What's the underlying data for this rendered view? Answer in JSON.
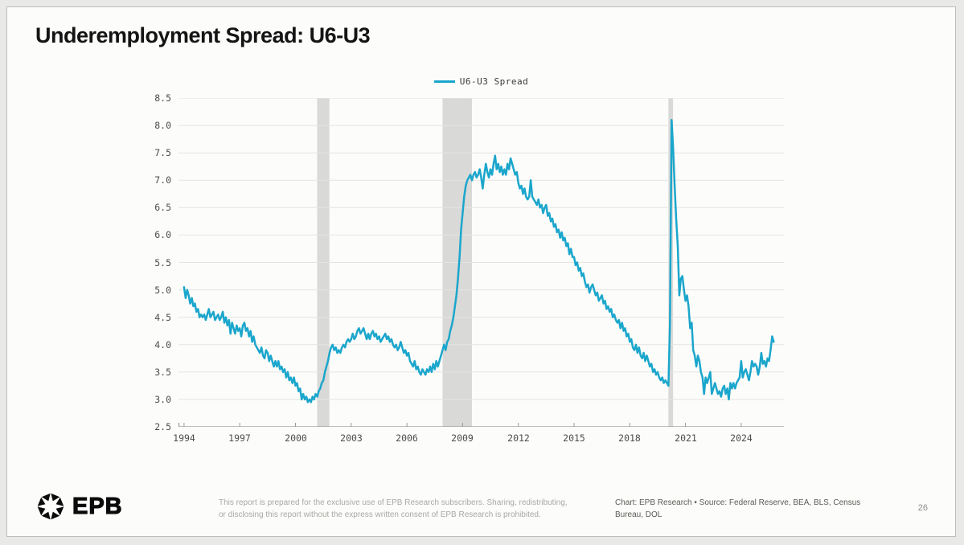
{
  "page": {
    "title": "Underemployment Spread: U6-U3",
    "page_number": "26"
  },
  "brand": {
    "name": "EPB",
    "logo_icon": "epb-sunburst-logo"
  },
  "footer": {
    "disclaimer_line1": "This report is prepared for the exclusive use of EPB Research subscribers. Sharing, redistributing,",
    "disclaimer_line2": "or disclosing this report without the express written consent of EPB Research is prohibited.",
    "source_line1": "Chart: EPB Research  •  Source: Federal Reserve, BEA, BLS, Census",
    "source_line2": "Bureau, DOL"
  },
  "colors": {
    "background": "#e9e9e7",
    "card": "#fcfcfa",
    "card_border": "#bdbdba",
    "title": "#141414",
    "grid": "#e4e4e1",
    "axis": "#9a9a97",
    "tick_label": "#4c4c4c",
    "recession_band": "#d9d9d7",
    "line": "#1ba6cc",
    "legend_text": "#3a3a3a",
    "disclaimer": "#a8a8a5",
    "source": "#5c5a56",
    "page_number": "#8b8b89"
  },
  "chart_data": {
    "type": "line",
    "title": "Underemployment Spread: U6-U3",
    "legend": [
      "U6-U3 Spread"
    ],
    "legend_position": "top-center",
    "grid": true,
    "line_color": "#1ba6cc",
    "x_start": 1994.0,
    "x_step_months": 1,
    "xlim": [
      1993.7,
      2026.3
    ],
    "ylim": [
      2.5,
      8.5
    ],
    "x_ticks": [
      1994,
      1997,
      2000,
      2003,
      2006,
      2009,
      2012,
      2015,
      2018,
      2021,
      2024
    ],
    "y_ticks": [
      2.5,
      3.0,
      3.5,
      4.0,
      4.5,
      5.0,
      5.5,
      6.0,
      6.5,
      7.0,
      7.5,
      8.0,
      8.5
    ],
    "recession_bands": [
      [
        2001.17,
        2001.83
      ],
      [
        2007.92,
        2009.5
      ],
      [
        2020.08,
        2020.33
      ]
    ],
    "values": [
      5.05,
      4.85,
      5.0,
      4.9,
      4.75,
      4.85,
      4.7,
      4.75,
      4.6,
      4.65,
      4.5,
      4.55,
      4.5,
      4.55,
      4.45,
      4.55,
      4.65,
      4.5,
      4.55,
      4.6,
      4.45,
      4.5,
      4.55,
      4.45,
      4.5,
      4.6,
      4.4,
      4.5,
      4.35,
      4.45,
      4.2,
      4.4,
      4.3,
      4.2,
      4.35,
      4.25,
      4.3,
      4.15,
      4.35,
      4.4,
      4.25,
      4.3,
      4.15,
      4.25,
      4.05,
      4.15,
      4.0,
      3.95,
      3.9,
      3.85,
      3.95,
      3.8,
      3.75,
      3.9,
      3.85,
      3.7,
      3.8,
      3.7,
      3.6,
      3.7,
      3.6,
      3.7,
      3.55,
      3.6,
      3.5,
      3.55,
      3.4,
      3.5,
      3.35,
      3.4,
      3.3,
      3.4,
      3.25,
      3.3,
      3.15,
      3.2,
      3.0,
      3.1,
      3.0,
      3.05,
      2.95,
      3.0,
      2.95,
      3.05,
      3.0,
      3.1,
      3.05,
      3.15,
      3.2,
      3.3,
      3.35,
      3.5,
      3.6,
      3.7,
      3.85,
      3.95,
      4.0,
      3.9,
      3.95,
      3.85,
      3.9,
      3.85,
      3.95,
      4.0,
      3.95,
      4.05,
      4.1,
      4.05,
      4.1,
      4.2,
      4.1,
      4.15,
      4.25,
      4.3,
      4.2,
      4.25,
      4.3,
      4.2,
      4.1,
      4.2,
      4.1,
      4.2,
      4.25,
      4.15,
      4.2,
      4.1,
      4.15,
      4.05,
      4.1,
      4.15,
      4.2,
      4.1,
      4.15,
      4.05,
      4.1,
      4.0,
      3.95,
      4.0,
      3.9,
      3.95,
      4.05,
      3.95,
      3.85,
      3.9,
      3.8,
      3.85,
      3.7,
      3.65,
      3.6,
      3.7,
      3.55,
      3.6,
      3.5,
      3.45,
      3.55,
      3.5,
      3.45,
      3.55,
      3.5,
      3.6,
      3.5,
      3.65,
      3.55,
      3.7,
      3.6,
      3.7,
      3.8,
      3.9,
      4.0,
      3.9,
      4.05,
      4.1,
      4.25,
      4.35,
      4.5,
      4.7,
      4.9,
      5.2,
      5.6,
      6.1,
      6.4,
      6.7,
      6.9,
      7.0,
      7.05,
      7.1,
      7.0,
      7.1,
      7.15,
      7.05,
      7.1,
      7.2,
      7.05,
      6.85,
      7.1,
      7.3,
      7.15,
      7.05,
      7.2,
      7.1,
      7.3,
      7.45,
      7.2,
      7.3,
      7.15,
      7.25,
      7.1,
      7.2,
      7.1,
      7.3,
      7.2,
      7.4,
      7.3,
      7.2,
      7.1,
      7.15,
      6.95,
      6.85,
      6.9,
      6.75,
      6.85,
      6.7,
      6.65,
      6.7,
      7.0,
      6.7,
      6.65,
      6.6,
      6.55,
      6.65,
      6.5,
      6.55,
      6.4,
      6.5,
      6.55,
      6.35,
      6.4,
      6.25,
      6.3,
      6.15,
      6.2,
      6.05,
      6.1,
      5.95,
      6.05,
      5.9,
      5.95,
      5.8,
      5.85,
      5.65,
      5.75,
      5.6,
      5.6,
      5.45,
      5.5,
      5.35,
      5.4,
      5.25,
      5.3,
      5.15,
      5.05,
      5.1,
      4.95,
      5.05,
      5.1,
      5.0,
      4.9,
      4.95,
      4.8,
      4.85,
      4.9,
      4.75,
      4.8,
      4.65,
      4.7,
      4.6,
      4.65,
      4.5,
      4.55,
      4.45,
      4.4,
      4.45,
      4.3,
      4.4,
      4.25,
      4.3,
      4.15,
      4.2,
      4.05,
      4.1,
      3.95,
      3.9,
      4.0,
      3.85,
      3.95,
      3.8,
      3.75,
      3.85,
      3.7,
      3.8,
      3.7,
      3.6,
      3.65,
      3.5,
      3.55,
      3.45,
      3.5,
      3.4,
      3.35,
      3.4,
      3.3,
      3.35,
      3.3,
      3.25,
      4.4,
      8.1,
      7.6,
      6.9,
      6.3,
      5.8,
      4.9,
      5.2,
      5.25,
      5.0,
      4.8,
      4.9,
      4.7,
      4.3,
      4.4,
      3.9,
      3.8,
      3.6,
      3.8,
      3.7,
      3.5,
      3.4,
      3.1,
      3.4,
      3.3,
      3.4,
      3.5,
      3.1,
      3.2,
      3.3,
      3.2,
      3.1,
      3.15,
      3.05,
      3.2,
      3.25,
      3.1,
      3.2,
      3.0,
      3.3,
      3.2,
      3.3,
      3.2,
      3.3,
      3.35,
      3.4,
      3.7,
      3.4,
      3.5,
      3.55,
      3.45,
      3.35,
      3.5,
      3.7,
      3.6,
      3.65,
      3.6,
      3.45,
      3.6,
      3.85,
      3.65,
      3.7,
      3.6,
      3.75,
      3.7,
      3.9,
      4.15,
      4.05
    ]
  }
}
